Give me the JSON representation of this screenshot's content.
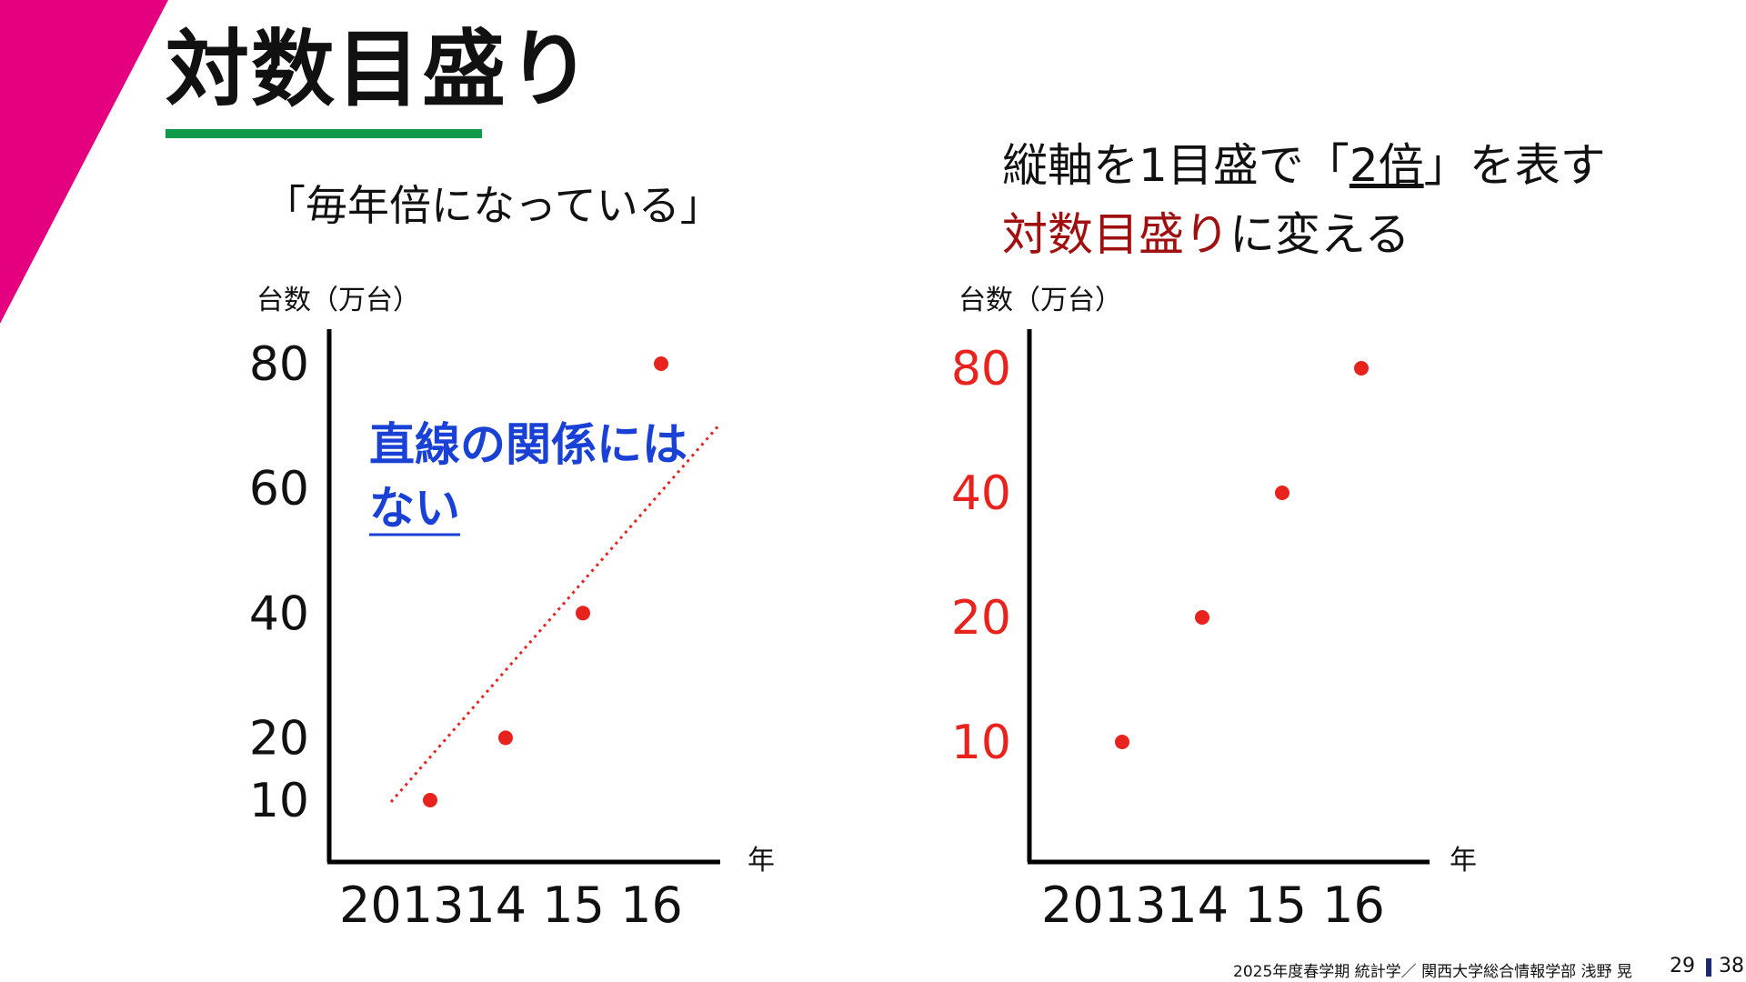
{
  "title": "対数目盛り",
  "subtitle": "「毎年倍になっている」",
  "note": {
    "line1_a": "縦軸を1目盛で「",
    "line1_b": "2倍",
    "line1_c": "」を表す",
    "line2_a": "対数目盛り",
    "line2_b": "に変える"
  },
  "annotation": {
    "line1": "直線の関係には",
    "line2": "ない"
  },
  "footer": "2025年度春学期 統計学／ 関西大学総合情報学部 浅野 晃",
  "page": {
    "current": "29",
    "total": "38"
  },
  "colors": {
    "accent": "#e5007f",
    "underline": "#119a4a",
    "data": "#e8231e",
    "emphasis": "#a01010",
    "annotation": "#1941d6",
    "axis": "#000000"
  },
  "chart_data": [
    {
      "type": "scatter",
      "y_scale": "linear",
      "x": [
        "2013",
        "2014",
        "2015",
        "2016"
      ],
      "x_tick_text": "201314 15 16",
      "y": [
        10,
        20,
        40,
        80
      ],
      "yticks": [
        "10",
        "20",
        "40",
        "60",
        "80"
      ],
      "ylabel": "台数（万台）",
      "xlabel": "年",
      "ylim": [
        0,
        80
      ],
      "trendline": "dotted",
      "grid": false
    },
    {
      "type": "scatter",
      "y_scale": "log2",
      "x": [
        "2013",
        "2014",
        "2015",
        "2016"
      ],
      "x_tick_text": "201314 15 16",
      "y": [
        10,
        20,
        40,
        80
      ],
      "yticks": [
        "10",
        "20",
        "40",
        "80"
      ],
      "ylabel": "台数（万台）",
      "xlabel": "年",
      "ylim": [
        10,
        80
      ],
      "grid": false
    }
  ]
}
